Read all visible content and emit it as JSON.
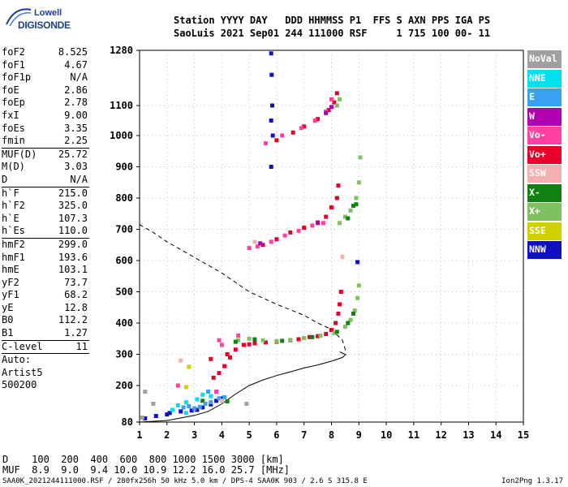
{
  "logo": {
    "line1": "Lowell",
    "line2": "DIGISONDE"
  },
  "header": {
    "line1": "Station YYYY DAY   DDD HHMMSS P1  FFS S AXN PPS IGA PS",
    "line2": "SaoLuis 2021 Sep01 244 111000 RSF     1 715 100 00- 11"
  },
  "params": {
    "group1": [
      {
        "k": "foF2",
        "v": "8.525"
      },
      {
        "k": "foF1",
        "v": "4.67"
      },
      {
        "k": "foF1p",
        "v": "N/A"
      },
      {
        "k": "foE",
        "v": "2.86"
      },
      {
        "k": "foEp",
        "v": "2.78"
      },
      {
        "k": "fxI",
        "v": "9.00"
      },
      {
        "k": "foEs",
        "v": "3.35"
      },
      {
        "k": "fmin",
        "v": "2.25"
      }
    ],
    "group2": [
      {
        "k": "MUF(D)",
        "v": "25.72"
      },
      {
        "k": "M(D)",
        "v": "3.03"
      },
      {
        "k": "D",
        "v": "N/A"
      }
    ],
    "group3": [
      {
        "k": "h`F",
        "v": "215.0"
      },
      {
        "k": "h`F2",
        "v": "325.0"
      },
      {
        "k": "h`E",
        "v": "107.3"
      },
      {
        "k": "h`Es",
        "v": "110.0"
      }
    ],
    "group4": [
      {
        "k": "hmF2",
        "v": "299.0"
      },
      {
        "k": "hmF1",
        "v": "193.6"
      },
      {
        "k": "hmE",
        "v": "103.1"
      },
      {
        "k": "yF2",
        "v": "73.7"
      },
      {
        "k": "yF1",
        "v": "68.2"
      },
      {
        "k": "yE",
        "v": "12.8"
      },
      {
        "k": "B0",
        "v": "112.2"
      },
      {
        "k": "B1",
        "v": "1.27"
      }
    ],
    "clevel": {
      "k": "C-level",
      "v": "11"
    },
    "auto": [
      "Auto:",
      "Artist5",
      "500200"
    ]
  },
  "legend": [
    {
      "label": "NoVal",
      "color": "#a0a0a0"
    },
    {
      "label": "NNE",
      "color": "#00e0f0"
    },
    {
      "label": "E",
      "color": "#3aa0f0"
    },
    {
      "label": "W",
      "color": "#b000b0"
    },
    {
      "label": "Vo-",
      "color": "#ff40a0"
    },
    {
      "label": "Vo+",
      "color": "#e8002a"
    },
    {
      "label": "SSW",
      "color": "#f4b0b0"
    },
    {
      "label": "X-",
      "color": "#108010"
    },
    {
      "label": "X+",
      "color": "#80c060"
    },
    {
      "label": "SSE",
      "color": "#d0d000"
    },
    {
      "label": "NNW",
      "color": "#1010c0"
    }
  ],
  "muf_table": {
    "row1": "D    100  200  400  600  800 1000 1500 3000 [km]",
    "row2": "MUF  8.9  9.0  9.4 10.0 10.9 12.2 16.0 25.7 [MHz]"
  },
  "footer": {
    "left": "SAA0K_2021244111000.RSF / 280fx256h 50 kHz 5.0 km / DPS-4 SAA0K 903 / 2.6 S 315.8 E",
    "right": "Ion2Png 1.3.17"
  },
  "chart_data": {
    "type": "scatter",
    "xlim": [
      1,
      15
    ],
    "ylim": [
      80,
      1280
    ],
    "x_ticks": [
      1,
      2,
      3,
      4,
      5,
      6,
      7,
      8,
      9,
      10,
      11,
      12,
      13,
      14,
      15
    ],
    "y_ticks": [
      80,
      200,
      300,
      400,
      500,
      600,
      700,
      800,
      900,
      1000,
      1100,
      1280
    ],
    "grid": true,
    "profile_solid": [
      [
        1,
        80
      ],
      [
        2,
        85
      ],
      [
        3,
        102
      ],
      [
        3.5,
        115
      ],
      [
        4,
        140
      ],
      [
        4.5,
        172
      ],
      [
        5,
        200
      ],
      [
        5.5,
        218
      ],
      [
        6,
        232
      ],
      [
        6.5,
        244
      ],
      [
        7,
        256
      ],
      [
        7.5,
        266
      ],
      [
        8,
        278
      ],
      [
        8.4,
        290
      ],
      [
        8.52,
        299
      ],
      [
        8.3,
        308
      ]
    ],
    "profile_dashed": [
      [
        1,
        715
      ],
      [
        1.5,
        690
      ],
      [
        2,
        660
      ],
      [
        3,
        610
      ],
      [
        4,
        560
      ],
      [
        5,
        500
      ],
      [
        6,
        460
      ],
      [
        7,
        425
      ],
      [
        7.5,
        400
      ],
      [
        8,
        380
      ],
      [
        8.4,
        345
      ],
      [
        8.52,
        310
      ]
    ],
    "series": [
      {
        "name": "Vo+",
        "color": "#e8002a",
        "points": [
          [
            3.7,
            225
          ],
          [
            3.9,
            240
          ],
          [
            4.1,
            262
          ],
          [
            4.3,
            290
          ],
          [
            4.5,
            315
          ],
          [
            4.8,
            330
          ],
          [
            5.2,
            335
          ],
          [
            5.6,
            338
          ],
          [
            6.0,
            340
          ],
          [
            6.5,
            345
          ],
          [
            7.0,
            352
          ],
          [
            7.5,
            358
          ],
          [
            7.8,
            365
          ],
          [
            8.0,
            378
          ],
          [
            8.15,
            400
          ],
          [
            8.25,
            430
          ],
          [
            8.3,
            460
          ],
          [
            8.35,
            500
          ],
          [
            3.6,
            285
          ],
          [
            4.2,
            300
          ],
          [
            5.0,
            332
          ],
          [
            6.8,
            348
          ],
          [
            7.2,
            355
          ],
          [
            5.5,
            650
          ],
          [
            6.0,
            668
          ],
          [
            6.5,
            690
          ],
          [
            7.0,
            705
          ],
          [
            7.5,
            720
          ],
          [
            7.8,
            740
          ],
          [
            8.0,
            770
          ],
          [
            8.2,
            800
          ],
          [
            8.25,
            840
          ],
          [
            6.0,
            985
          ],
          [
            6.6,
            1010
          ],
          [
            7.0,
            1030
          ],
          [
            7.5,
            1055
          ],
          [
            7.9,
            1085
          ],
          [
            8.1,
            1110
          ],
          [
            8.2,
            1140
          ]
        ]
      },
      {
        "name": "X+",
        "color": "#80c060",
        "points": [
          [
            4.6,
            345
          ],
          [
            5.0,
            350
          ],
          [
            5.5,
            345
          ],
          [
            6.0,
            342
          ],
          [
            6.5,
            346
          ],
          [
            7.0,
            352
          ],
          [
            7.6,
            360
          ],
          [
            8.1,
            368
          ],
          [
            8.5,
            388
          ],
          [
            8.7,
            410
          ],
          [
            8.85,
            440
          ],
          [
            8.95,
            480
          ],
          [
            9.0,
            520
          ],
          [
            8.3,
            720
          ],
          [
            8.5,
            740
          ],
          [
            8.7,
            760
          ],
          [
            8.9,
            800
          ],
          [
            9.0,
            850
          ],
          [
            9.05,
            930
          ],
          [
            8.2,
            1100
          ],
          [
            8.3,
            1120
          ]
        ]
      },
      {
        "name": "X-",
        "color": "#108010",
        "points": [
          [
            4.5,
            340
          ],
          [
            5.2,
            348
          ],
          [
            6.2,
            343
          ],
          [
            7.3,
            355
          ],
          [
            8.2,
            372
          ],
          [
            8.6,
            400
          ],
          [
            8.8,
            430
          ],
          [
            3.3,
            150
          ],
          [
            4.2,
            148
          ],
          [
            8.6,
            735
          ],
          [
            8.8,
            775
          ],
          [
            8.9,
            780
          ]
        ]
      },
      {
        "name": "Vo-",
        "color": "#ff40a0",
        "points": [
          [
            3.9,
            345
          ],
          [
            4.0,
            330
          ],
          [
            4.6,
            360
          ],
          [
            5.0,
            640
          ],
          [
            5.3,
            645
          ],
          [
            5.8,
            660
          ],
          [
            6.3,
            680
          ],
          [
            6.8,
            695
          ],
          [
            7.3,
            712
          ],
          [
            7.7,
            720
          ],
          [
            5.6,
            975
          ],
          [
            6.2,
            1000
          ],
          [
            6.9,
            1025
          ],
          [
            7.4,
            1050
          ],
          [
            7.8,
            1080
          ],
          [
            8.0,
            1120
          ],
          [
            3.8,
            180
          ],
          [
            2.4,
            200
          ]
        ]
      },
      {
        "name": "W",
        "color": "#b000b0",
        "points": [
          [
            7.8,
            1075
          ],
          [
            8.0,
            1095
          ],
          [
            5.4,
            655
          ],
          [
            7.5,
            722
          ]
        ]
      },
      {
        "name": "NNW",
        "color": "#1010c0",
        "points": [
          [
            2.1,
            110
          ],
          [
            2.5,
            115
          ],
          [
            2.9,
            118
          ],
          [
            3.1,
            120
          ],
          [
            3.3,
            128
          ],
          [
            3.6,
            138
          ],
          [
            3.8,
            150
          ],
          [
            4.0,
            158
          ],
          [
            5.8,
            1270
          ],
          [
            5.82,
            1200
          ],
          [
            5.84,
            1100
          ],
          [
            5.86,
            1000
          ],
          [
            5.8,
            900
          ],
          [
            5.8,
            1050
          ],
          [
            1.2,
            92
          ],
          [
            1.6,
            100
          ],
          [
            2.0,
            105
          ],
          [
            8.95,
            595
          ]
        ]
      },
      {
        "name": "E",
        "color": "#3aa0f0",
        "points": [
          [
            2.6,
            128
          ],
          [
            2.8,
            132
          ],
          [
            3.0,
            125
          ],
          [
            3.2,
            130
          ],
          [
            3.4,
            140
          ],
          [
            3.6,
            145
          ],
          [
            3.9,
            158
          ],
          [
            4.1,
            162
          ],
          [
            3.5,
            180
          ]
        ]
      },
      {
        "name": "NNE",
        "color": "#00e0f0",
        "points": [
          [
            2.2,
            120
          ],
          [
            2.4,
            135
          ],
          [
            2.7,
            145
          ],
          [
            3.1,
            155
          ],
          [
            3.3,
            170
          ],
          [
            3.6,
            165
          ],
          [
            2.7,
            110
          ]
        ]
      },
      {
        "name": "SSE",
        "color": "#d0d000",
        "points": [
          [
            2.7,
            195
          ],
          [
            2.8,
            260
          ]
        ]
      },
      {
        "name": "SSW",
        "color": "#f4b0b0",
        "points": [
          [
            4.0,
            150
          ],
          [
            2.5,
            280
          ],
          [
            5.2,
            660
          ],
          [
            8.4,
            612
          ]
        ]
      },
      {
        "name": "NoVal",
        "color": "#a0a0a0",
        "points": [
          [
            1.1,
            95
          ],
          [
            1.5,
            140
          ],
          [
            1.2,
            180
          ],
          [
            4.9,
            140
          ]
        ]
      }
    ]
  }
}
